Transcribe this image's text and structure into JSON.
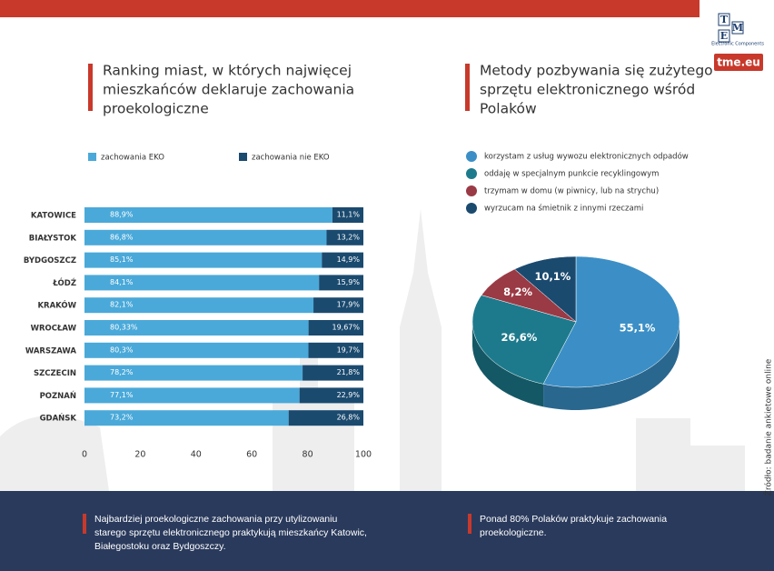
{
  "header": {
    "logo_letters": [
      "T",
      "M",
      "E"
    ],
    "logo_caption": "Electronic Components",
    "url": "tme.eu"
  },
  "chart_data": [
    {
      "type": "stacked_hbar",
      "title": [
        "Ranking miast, w których najwięcej",
        "mieszkańców deklaruje zachowania",
        "proekologiczne"
      ],
      "categories": [
        "KATOWICE",
        "BIAŁYSTOK",
        "BYDGOSZCZ",
        "ŁÓDŹ",
        "KRAKÓW",
        "WROCŁAW",
        "WARSZAWA",
        "SZCZECIN",
        "POZNAŃ",
        "GDAŃSK"
      ],
      "series": [
        {
          "name": "zachowania EKO",
          "color": "#4aa9d9",
          "values": [
            88.9,
            86.8,
            85.1,
            84.1,
            82.1,
            80.33,
            80.3,
            78.2,
            77.1,
            73.2
          ],
          "value_labels": [
            "88,9%",
            "86,8%",
            "85,1%",
            "84,1%",
            "82,1%",
            "80,33%",
            "80,3%",
            "78,2%",
            "77,1%",
            "73,2%"
          ]
        },
        {
          "name": "zachowania nie EKO",
          "color": "#1b4a6f",
          "values": [
            11.1,
            13.2,
            14.9,
            15.9,
            17.9,
            19.67,
            19.7,
            21.8,
            22.9,
            26.8
          ],
          "value_labels": [
            "11,1%",
            "13,2%",
            "14,9%",
            "15,9%",
            "17,9%",
            "19,67%",
            "19,7%",
            "21,8%",
            "22,9%",
            "26,8%"
          ]
        }
      ],
      "xlim": [
        0,
        100
      ],
      "xticks": [
        0,
        20,
        40,
        60,
        80,
        100
      ]
    },
    {
      "type": "pie",
      "title": [
        "Metody pozbywania się zużytego",
        "sprzętu elektronicznego wśród",
        "Polaków"
      ],
      "categories": [
        "korzystam z usług wywozu elektronicznych odpadów",
        "oddaję w specjalnym punkcie recyklingowym",
        "trzymam w domu (w piwnicy, lub na strychu)",
        "wyrzucam na śmietnik z innymi rzeczami"
      ],
      "values": [
        55.1,
        26.6,
        8.2,
        10.1
      ],
      "value_labels": [
        "55,1%",
        "26,6%",
        "8,2%",
        "10,1%"
      ],
      "colors": [
        "#3b8fc6",
        "#1d7a8c",
        "#9a3a45",
        "#1b4a6f"
      ]
    }
  ],
  "source": "Źródło: badanie ankietowe online",
  "footer": {
    "left": [
      "Najbardziej proekologiczne zachowania przy utylizowaniu",
      "starego sprzętu elektronicznego praktykują mieszkańcy Katowic,",
      "Białegostoku oraz Bydgoszczy."
    ],
    "right": [
      "Ponad 80% Polaków praktykuje zachowania",
      "proekologiczne."
    ]
  }
}
